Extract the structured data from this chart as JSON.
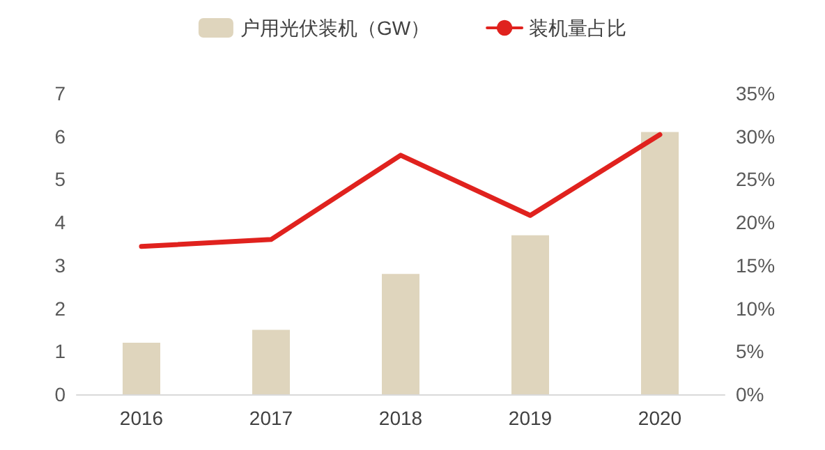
{
  "chart_data": {
    "type": "bar",
    "categories": [
      "2016",
      "2017",
      "2018",
      "2019",
      "2020"
    ],
    "series": [
      {
        "name": "户用光伏装机（GW）",
        "color": "#dfd5bd",
        "values": [
          1.2,
          1.5,
          2.8,
          3.7,
          6.1
        ]
      },
      {
        "name": "装机量占比",
        "type": "line",
        "axis": "y2",
        "color": "#e0221e",
        "values": [
          17.2,
          18.0,
          27.8,
          20.8,
          30.2
        ]
      }
    ],
    "ylim": [
      0,
      7
    ],
    "yticks": [
      0,
      1,
      2,
      3,
      4,
      5,
      6,
      7
    ],
    "y2lim": [
      0,
      35
    ],
    "y2ticks": [
      {
        "value": 0,
        "label": "0%"
      },
      {
        "value": 5,
        "label": "5%"
      },
      {
        "value": 10,
        "label": "10%"
      },
      {
        "value": 15,
        "label": "15%"
      },
      {
        "value": 20,
        "label": "20%"
      },
      {
        "value": 25,
        "label": "25%"
      },
      {
        "value": 30,
        "label": "30%"
      },
      {
        "value": 35,
        "label": "35%"
      }
    ],
    "grid": false,
    "legend": "top",
    "marker": "none",
    "line_style": "solid"
  }
}
